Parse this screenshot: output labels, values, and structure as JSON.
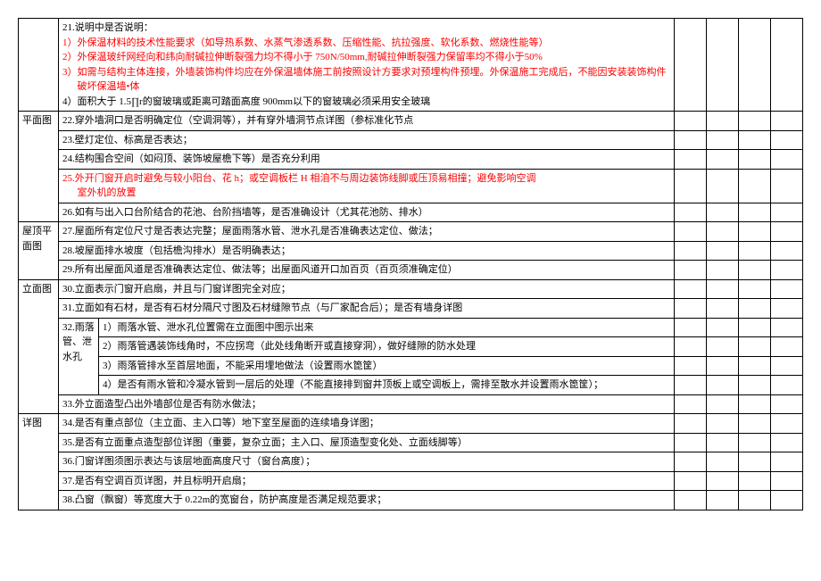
{
  "rows": [
    {
      "category": "",
      "categoryRowspan": 1,
      "contentColspan": 3,
      "contentHtml": [
        {
          "text": "21.说明中是否说明：",
          "red": false
        },
        {
          "text": "1）外保温材料的技术性能要求（如导热系数、水蒸气渗透系数、压缩性能、抗拉强度、软化系数、燃烧性能等）",
          "red": true,
          "indent": true
        },
        {
          "text": "2）外保温玻纤网经向和纬向耐碱拉伸断裂强力均不得小于 750N/50mm,耐碱拉伸断裂强力保留率均不得小于50%",
          "red": true,
          "indent": true
        },
        {
          "text": "3）如需与结构主体连接，外墙装饰构件均应在外保温墙体施工前按照设计方要求对预埋构件预埋。外保温施工完成后，不能因安装装饰构件破坏保温墙•体",
          "red": true,
          "indent": true
        },
        {
          "text": "4）面积大于 1.5∏r的窗玻璃或距离可踏面高度 900mm以下的窗玻璃必须采用安全玻璃",
          "red": false
        }
      ]
    },
    {
      "category": "平面图",
      "categoryRowspan": 5,
      "contentColspan": 3,
      "content": "22.穿外墙洞口是否明确定位（空调洞等），并有穿外墙洞节点详图（参标准化节点"
    },
    {
      "contentColspan": 3,
      "content": "23.壁灯定位、标高是否表达；"
    },
    {
      "contentColspan": 3,
      "content": "24.结构围合空间（如闷顶、装饰坡屋檐下等）是否充分利用"
    },
    {
      "contentColspan": 3,
      "content": "25.外开门窗开启时避免与较小阳台、花 h；或空调板栏 H 相洎不与周边装饰线脚或压顶易相撞；避免影响空调室外机的放置",
      "red": true
    },
    {
      "contentColspan": 3,
      "content": "26.如有与出入口台阶结合的花池、台阶挡墙等，是否准确设计（尤其花池防、排水）"
    },
    {
      "category": "屋顶平面图",
      "categoryRowspan": 3,
      "contentColspan": 3,
      "content": "27.屋面所有定位尺寸是否表达完整；屋面雨落水管、泄水孔是否准确表达定位、做法；"
    },
    {
      "contentColspan": 3,
      "content": "28.坡屋面排水坡度（包括檐沟排水）是否明确表达；"
    },
    {
      "contentColspan": 3,
      "content": "29.所有出屋面风道是否准确表达定位、做法等；出屋面风道开口加百页（百页须准确定位）"
    },
    {
      "category": "立面图",
      "categoryRowspan": 7,
      "contentColspan": 3,
      "content": "30.立面表示门窗开启扇，并且与门窗详图完全对应；"
    },
    {
      "contentColspan": 3,
      "content": "31.立面如有石材，是否有石材分隔尺寸图及石材缝隙节点（与厂家配合后）；是否有墙身详图"
    },
    {
      "sub1": "32.雨落管、泄水孔",
      "sub1Rowspan": 4,
      "contentColspan": 2,
      "content": "1）雨落水管、泄水孔位置需在立面图中图示出来"
    },
    {
      "contentColspan": 2,
      "content": "2）雨落管遇装饰线角时，不应拐弯（此处线角断开或直接穿洞），做好缝隙的防水处理"
    },
    {
      "contentColspan": 2,
      "content": "3）雨落管排水至首层地面，不能采用埋地做法（设置雨水箆筐）"
    },
    {
      "contentColspan": 2,
      "content": "4）是否有雨水管和冷凝水管到一层后的处理（不能直接排到窗井顶板上或空调板上，需排至散水并设置雨水箆筐）；"
    },
    {
      "contentColspan": 3,
      "content": "33.外立面造型凸出外墙部位是否有防水做法；"
    },
    {
      "category": "详图",
      "categoryRowspan": 5,
      "contentColspan": 3,
      "content": "34.是否有重点部位（主立面、主入口等）地下室至屋面的连续墙身详图；"
    },
    {
      "contentColspan": 3,
      "content": "35.是否有立面重点造型部位详图（重要，复杂立面；主入口、屋顶造型变化处、立面线脚等）"
    },
    {
      "contentColspan": 3,
      "content": "36.门窗详图须图示表达与该层地面高度尺寸（窗台高度）；"
    },
    {
      "contentColspan": 3,
      "content": "37.是否有空调百页详图，并且标明开启扇；"
    },
    {
      "contentColspan": 3,
      "content": "38.凸窗（飘窗）等宽度大于 0.22m的宽窗台，防护高度是否满足规范要求；"
    }
  ],
  "emptyCols": 4
}
